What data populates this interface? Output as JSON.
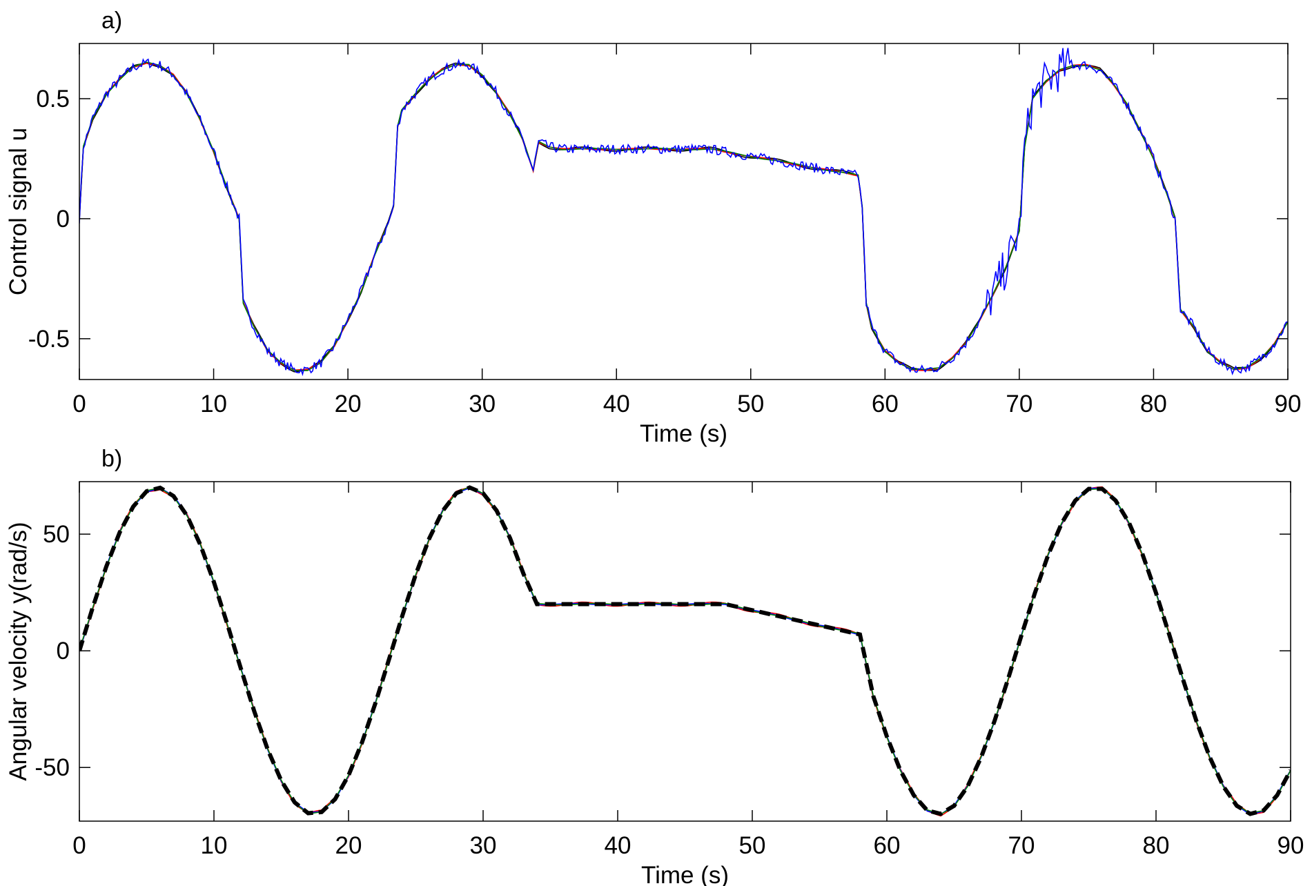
{
  "chart_data": [
    {
      "type": "line",
      "title": "a)",
      "xlabel": "Time (s)",
      "ylabel": "Control signal u",
      "xlim": [
        0,
        90
      ],
      "ylim": [
        -0.67,
        0.73
      ],
      "xticks": [
        0,
        10,
        20,
        30,
        40,
        50,
        60,
        70,
        80,
        90
      ],
      "xtick_labels": [
        "0",
        "10",
        "20",
        "30",
        "40",
        "50",
        "60",
        "70",
        "80",
        "90"
      ],
      "yticks": [
        -0.5,
        0,
        0.5
      ],
      "ytick_labels": [
        "-0.5",
        "0",
        "0.5"
      ],
      "grid": false,
      "x": [
        0,
        0.3,
        1,
        2,
        3,
        4,
        5,
        6,
        7,
        8,
        9,
        10,
        11,
        11.9,
        12.2,
        13,
        14,
        15,
        16,
        17,
        18,
        19,
        20,
        21,
        22,
        23,
        23.4,
        23.7,
        24,
        25,
        26,
        27,
        28,
        29,
        30,
        31,
        32,
        33,
        33.8,
        34.2,
        35,
        36,
        38,
        40,
        42,
        44,
        46,
        47,
        48,
        50,
        52,
        54,
        56,
        58,
        58.3,
        58.6,
        59,
        60,
        61,
        62,
        63,
        64,
        65,
        66,
        67,
        68,
        69,
        70,
        70.4,
        71,
        72,
        73,
        74,
        75,
        76,
        77,
        78,
        79,
        80,
        81,
        81.6,
        82,
        83,
        84,
        85,
        86,
        87,
        88,
        89,
        90
      ],
      "base": [
        0,
        0.3,
        0.42,
        0.52,
        0.58,
        0.63,
        0.65,
        0.64,
        0.6,
        0.52,
        0.41,
        0.28,
        0.13,
        0.0,
        -0.35,
        -0.45,
        -0.55,
        -0.6,
        -0.63,
        -0.63,
        -0.6,
        -0.53,
        -0.42,
        -0.3,
        -0.15,
        -0.02,
        0.05,
        0.38,
        0.45,
        0.52,
        0.58,
        0.62,
        0.64,
        0.64,
        0.6,
        0.53,
        0.44,
        0.33,
        0.2,
        0.32,
        0.3,
        0.29,
        0.29,
        0.29,
        0.29,
        0.29,
        0.29,
        0.29,
        0.28,
        0.26,
        0.24,
        0.22,
        0.2,
        0.18,
        0.05,
        -0.35,
        -0.45,
        -0.55,
        -0.6,
        -0.63,
        -0.63,
        -0.62,
        -0.58,
        -0.52,
        -0.43,
        -0.32,
        -0.2,
        -0.05,
        0.3,
        0.5,
        0.57,
        0.62,
        0.64,
        0.64,
        0.62,
        0.56,
        0.48,
        0.37,
        0.25,
        0.1,
        0.0,
        -0.38,
        -0.45,
        -0.55,
        -0.6,
        -0.63,
        -0.62,
        -0.58,
        -0.52,
        -0.43
      ],
      "series": [
        {
          "name": "black",
          "color": "#000000",
          "dash": false,
          "noise": 0.0
        },
        {
          "name": "red",
          "color": "#ff0000",
          "dash": false,
          "noise": 0.0
        },
        {
          "name": "green",
          "color": "#007f00",
          "dash": false,
          "noise": 0.0
        },
        {
          "name": "blue",
          "color": "#0000ff",
          "dash": false,
          "noise": 0.02
        }
      ]
    },
    {
      "type": "line",
      "title": "b)",
      "xlabel": "Time (s)",
      "ylabel": "Angular velocity y(rad/s)",
      "xlim": [
        0,
        90
      ],
      "ylim": [
        -73,
        72.5
      ],
      "xticks": [
        0,
        10,
        20,
        30,
        40,
        50,
        60,
        70,
        80,
        90
      ],
      "xtick_labels": [
        "0",
        "10",
        "20",
        "30",
        "40",
        "50",
        "60",
        "70",
        "80",
        "90"
      ],
      "yticks": [
        -50,
        0,
        50
      ],
      "ytick_labels": [
        "-50",
        "0",
        "50"
      ],
      "grid": false,
      "x": [
        0,
        1,
        2,
        3,
        4,
        5,
        6,
        7,
        8,
        9,
        10,
        11,
        12,
        13,
        14,
        15,
        16,
        17,
        18,
        19,
        20,
        21,
        22,
        23,
        24,
        25,
        26,
        27,
        28,
        29,
        30,
        31,
        32,
        33,
        34,
        35,
        36,
        37,
        38,
        39,
        40,
        41,
        42,
        43,
        44,
        45,
        46,
        47,
        48,
        49,
        50,
        51,
        52,
        53,
        54,
        55,
        56,
        57,
        58,
        59,
        60,
        61,
        62,
        63,
        64,
        65,
        66,
        67,
        68,
        69,
        70,
        71,
        72,
        73,
        74,
        75,
        76,
        77,
        78,
        79,
        80,
        81,
        82,
        83,
        84,
        85,
        86,
        87,
        88,
        89,
        90
      ],
      "base": [
        0,
        18.7,
        36.1,
        50.8,
        61.8,
        68.4,
        69.9,
        66.3,
        57.9,
        45.3,
        29.4,
        11.3,
        -7.6,
        -26.0,
        -42.4,
        -55.6,
        -65.0,
        -69.6,
        -69.1,
        -63.6,
        -53.4,
        -39.3,
        -22.4,
        -3.8,
        15.1,
        32.8,
        48.2,
        60.0,
        67.5,
        70.0,
        67.5,
        60.1,
        48.3,
        33.0,
        20,
        20,
        20,
        20,
        20,
        20,
        20,
        20,
        20,
        20,
        20,
        20,
        20,
        20,
        20,
        18.7,
        17.4,
        16.1,
        14.8,
        13.5,
        12.2,
        10.9,
        9.6,
        8.3,
        7,
        -19.6,
        -36.7,
        -51.2,
        -61.9,
        -68.4,
        -69.9,
        -66.4,
        -58.1,
        -45.7,
        -30.1,
        -12.2,
        6.6,
        24.8,
        41.3,
        54.8,
        64.4,
        69.4,
        69.4,
        64.4,
        54.8,
        41.3,
        24.8,
        6.6,
        -12.2,
        -30.1,
        -45.7,
        -58.1,
        -66.4,
        -69.9,
        -68.4,
        -61.9,
        -51.2
      ],
      "series": [
        {
          "name": "red",
          "color": "#ff0000",
          "dash": false,
          "noise": 0.0
        },
        {
          "name": "blue",
          "color": "#0000ff",
          "dash": false,
          "noise": 0.0
        },
        {
          "name": "green",
          "color": "#007f00",
          "dash": false,
          "noise": 0.0
        },
        {
          "name": "reference",
          "color": "#000000",
          "dash": true,
          "noise": 0.0
        }
      ]
    }
  ]
}
